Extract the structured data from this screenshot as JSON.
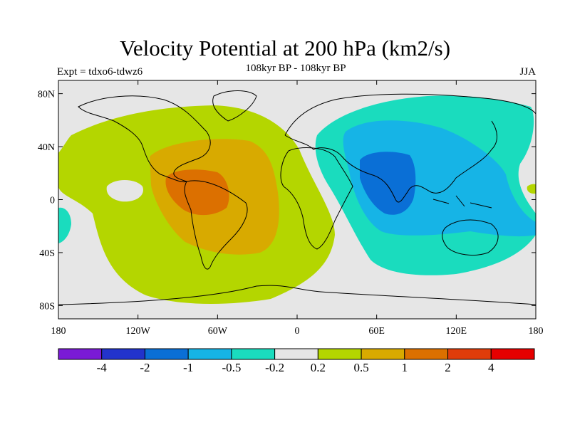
{
  "header": {
    "title": "Velocity Potential at 200 hPa (km2/s)",
    "subtitle": "108kyr BP - 108kyr BP",
    "left_label": "Expt = tdxo6-tdwz6",
    "right_label": "JJA"
  },
  "axes": {
    "lon_ticks": [
      "180",
      "120W",
      "60W",
      "0",
      "60E",
      "120E",
      "180"
    ],
    "lat_ticks": [
      "80N",
      "40N",
      "0",
      "40S",
      "80S"
    ]
  },
  "colorbar": {
    "colors": [
      "#7a1ad6",
      "#2233cc",
      "#0a6fd6",
      "#16b4e6",
      "#1adcbe",
      "#e6e6e6",
      "#b4d600",
      "#d8aa00",
      "#dc7000",
      "#e03c0a",
      "#e60000"
    ],
    "labels": [
      "-4",
      "-2",
      "-1",
      "-0.5",
      "-0.2",
      "0.2",
      "0.5",
      "1",
      "2",
      "4"
    ]
  },
  "fill_colors": {
    "neutral": "#e6e6e6",
    "pos1": "#b4d600",
    "pos2": "#d8aa00",
    "pos3": "#dc7000",
    "neg1": "#1adcbe",
    "neg2": "#16b4e6",
    "neg3": "#0a6fd6"
  }
}
